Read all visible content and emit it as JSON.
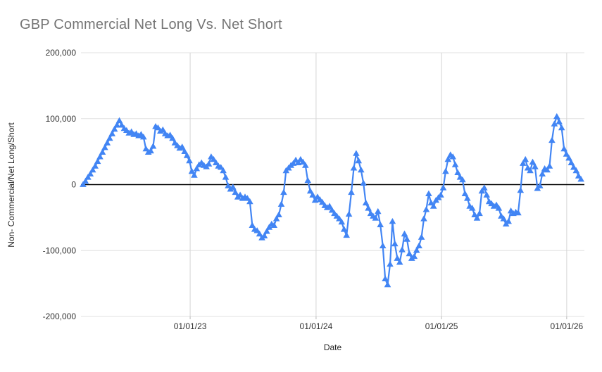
{
  "chart_data": {
    "type": "line",
    "title": "GBP Commercial Net Long Vs. Net Short",
    "xlabel": "Date",
    "ylabel": "Non- Commercial/Net Long/Short",
    "legend_position": "none",
    "grid": true,
    "marker_shape": "triangle-up",
    "line_color": "#4285f4",
    "zero_line_color": "#000000",
    "gridline_color": "#e2e2e2",
    "vertical_gridline_color": "#d5d5d5",
    "title_color": "#757575",
    "ylim": [
      -200000,
      200000
    ],
    "y_ticks": [
      {
        "label": "200,000",
        "value": 200000
      },
      {
        "label": "100,000",
        "value": 100000
      },
      {
        "label": "0",
        "value": 0
      },
      {
        "label": "-100,000",
        "value": -100000
      },
      {
        "label": "-200,000",
        "value": -200000
      }
    ],
    "x_ticks": [
      {
        "label": "01/01/23",
        "week": 44.3
      },
      {
        "label": "01/01/24",
        "week": 96.4
      },
      {
        "label": "01/01/25",
        "week": 148.3
      },
      {
        "label": "01/01/26",
        "week": 200.1
      }
    ],
    "x_unit": "week",
    "values": [
      0,
      5000,
      11000,
      16000,
      22000,
      28000,
      35000,
      42000,
      49000,
      56000,
      63000,
      70000,
      77000,
      84000,
      90000,
      97000,
      90000,
      85000,
      82000,
      78000,
      80000,
      76000,
      77000,
      74000,
      76000,
      72000,
      54000,
      49000,
      51000,
      58000,
      88000,
      86000,
      81000,
      83000,
      77000,
      74000,
      75000,
      70000,
      63000,
      59000,
      55000,
      57000,
      50000,
      44000,
      36000,
      20000,
      14000,
      24000,
      30000,
      33000,
      29000,
      27000,
      31000,
      42000,
      38000,
      33000,
      28000,
      26000,
      21000,
      11000,
      -2000,
      -7000,
      -4000,
      -12000,
      -19000,
      -16000,
      -21000,
      -19000,
      -21000,
      -26000,
      -62000,
      -68000,
      -70000,
      -75000,
      -81000,
      -78000,
      -71000,
      -65000,
      -60000,
      -62000,
      -52000,
      -46000,
      -30000,
      -12000,
      21000,
      25000,
      29000,
      32000,
      37000,
      33000,
      38000,
      34000,
      29000,
      6000,
      -10000,
      -16000,
      -24000,
      -19000,
      -23000,
      -27000,
      -32000,
      -35000,
      -33000,
      -39000,
      -44000,
      -48000,
      -52000,
      -57000,
      -68000,
      -77000,
      -45000,
      -12000,
      25000,
      47000,
      36000,
      22000,
      2000,
      -28000,
      -36000,
      -44000,
      -48000,
      -51000,
      -41000,
      -61000,
      -93000,
      -143000,
      -152000,
      -121000,
      -56000,
      -90000,
      -112000,
      -118000,
      -99000,
      -75000,
      -83000,
      -105000,
      -112000,
      -109000,
      -100000,
      -93000,
      -80000,
      -52000,
      -38000,
      -14000,
      -28000,
      -33000,
      -24000,
      -20000,
      -16000,
      -5000,
      20000,
      38000,
      45000,
      42000,
      30000,
      18000,
      11000,
      7000,
      -14000,
      -21000,
      -33000,
      -36000,
      -46000,
      -51000,
      -44000,
      -10000,
      -5000,
      -16000,
      -26000,
      -29000,
      -33000,
      -31000,
      -36000,
      -48000,
      -52000,
      -60000,
      -56000,
      -40000,
      -44000,
      -42000,
      -43000,
      -9000,
      32000,
      38000,
      25000,
      21000,
      34000,
      27000,
      -6000,
      -2000,
      16000,
      24000,
      22000,
      28000,
      67000,
      92000,
      103000,
      95000,
      86000,
      54000,
      46000,
      40000,
      33000,
      26000,
      21000,
      13000,
      8000
    ]
  }
}
